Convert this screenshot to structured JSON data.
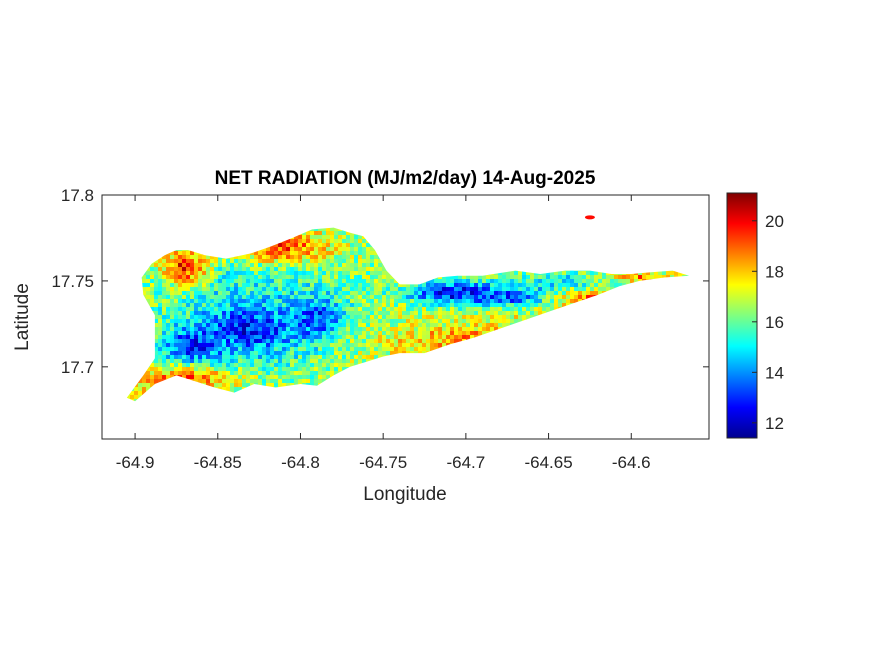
{
  "chart_data": {
    "type": "heatmap",
    "title": "NET RADIATION (MJ/m2/day) 14-Aug-2025",
    "xlabel": "Longitude",
    "ylabel": "Latitude",
    "xlim": [
      -64.92,
      -64.553
    ],
    "ylim": [
      17.658,
      17.8
    ],
    "x_ticks": [
      -64.9,
      -64.85,
      -64.8,
      -64.75,
      -64.7,
      -64.65,
      -64.6
    ],
    "x_tick_labels": [
      "-64.9",
      "-64.85",
      "-64.8",
      "-64.75",
      "-64.7",
      "-64.65",
      "-64.6"
    ],
    "y_ticks": [
      17.7,
      17.75,
      17.8
    ],
    "y_tick_labels": [
      "17.7",
      "17.75",
      "17.8"
    ],
    "grid": false,
    "colorbar": {
      "colormap": "jet",
      "clim": [
        11.4,
        21.1
      ],
      "ticks": [
        12,
        14,
        16,
        18,
        20
      ],
      "tick_labels": [
        "12",
        "14",
        "16",
        "18",
        "20"
      ]
    },
    "outline": [
      [
        -64.9,
        17.68
      ],
      [
        -64.888,
        17.69
      ],
      [
        -64.875,
        17.695
      ],
      [
        -64.865,
        17.692
      ],
      [
        -64.852,
        17.688
      ],
      [
        -64.84,
        17.685
      ],
      [
        -64.828,
        17.69
      ],
      [
        -64.815,
        17.688
      ],
      [
        -64.8,
        17.69
      ],
      [
        -64.79,
        17.689
      ],
      [
        -64.78,
        17.695
      ],
      [
        -64.77,
        17.7
      ],
      [
        -64.76,
        17.703
      ],
      [
        -64.75,
        17.706
      ],
      [
        -64.74,
        17.708
      ],
      [
        -64.725,
        17.708
      ],
      [
        -64.71,
        17.713
      ],
      [
        -64.695,
        17.717
      ],
      [
        -64.68,
        17.722
      ],
      [
        -64.665,
        17.727
      ],
      [
        -64.65,
        17.732
      ],
      [
        -64.635,
        17.737
      ],
      [
        -64.62,
        17.742
      ],
      [
        -64.607,
        17.747
      ],
      [
        -64.595,
        17.75
      ],
      [
        -64.58,
        17.752
      ],
      [
        -64.565,
        17.753
      ],
      [
        -64.575,
        17.756
      ],
      [
        -64.588,
        17.755
      ],
      [
        -64.6,
        17.754
      ],
      [
        -64.612,
        17.754
      ],
      [
        -64.625,
        17.756
      ],
      [
        -64.64,
        17.756
      ],
      [
        -64.655,
        17.754
      ],
      [
        -64.67,
        17.756
      ],
      [
        -64.69,
        17.753
      ],
      [
        -64.705,
        17.753
      ],
      [
        -64.717,
        17.752
      ],
      [
        -64.728,
        17.748
      ],
      [
        -64.74,
        17.748
      ],
      [
        -64.748,
        17.756
      ],
      [
        -64.755,
        17.768
      ],
      [
        -64.762,
        17.776
      ],
      [
        -64.77,
        17.778
      ],
      [
        -64.78,
        17.781
      ],
      [
        -64.793,
        17.78
      ],
      [
        -64.805,
        17.775
      ],
      [
        -64.818,
        17.77
      ],
      [
        -64.83,
        17.766
      ],
      [
        -64.845,
        17.763
      ],
      [
        -64.858,
        17.765
      ],
      [
        -64.868,
        17.768
      ],
      [
        -64.875,
        17.768
      ],
      [
        -64.882,
        17.765
      ],
      [
        -64.89,
        17.76
      ],
      [
        -64.896,
        17.752
      ],
      [
        -64.895,
        17.742
      ],
      [
        -64.888,
        17.73
      ],
      [
        -64.888,
        17.718
      ],
      [
        -64.888,
        17.705
      ],
      [
        -64.895,
        17.695
      ],
      [
        -64.905,
        17.682
      ]
    ],
    "islet": [
      -64.625,
      17.787
    ],
    "value_regions": [
      {
        "value": 15.0,
        "center": [
          -64.83,
          17.73
        ],
        "radius": [
          0.07,
          0.05
        ]
      },
      {
        "value": 12.8,
        "center": [
          -64.865,
          17.713
        ],
        "radius": [
          0.018,
          0.01
        ]
      },
      {
        "value": 12.8,
        "center": [
          -64.83,
          17.722
        ],
        "radius": [
          0.025,
          0.012
        ]
      },
      {
        "value": 13.2,
        "center": [
          -64.79,
          17.728
        ],
        "radius": [
          0.015,
          0.012
        ]
      },
      {
        "value": 12.4,
        "center": [
          -64.705,
          17.743
        ],
        "radius": [
          0.03,
          0.007
        ]
      },
      {
        "value": 13.3,
        "center": [
          -64.675,
          17.741
        ],
        "radius": [
          0.025,
          0.006
        ]
      },
      {
        "value": 14.6,
        "center": [
          -64.64,
          17.747
        ],
        "radius": [
          0.035,
          0.008
        ]
      },
      {
        "value": 19.6,
        "center": [
          -64.87,
          17.758
        ],
        "radius": [
          0.014,
          0.01
        ]
      },
      {
        "value": 19.2,
        "center": [
          -64.81,
          17.77
        ],
        "radius": [
          0.03,
          0.01
        ]
      },
      {
        "value": 19.0,
        "center": [
          -64.87,
          17.693
        ],
        "radius": [
          0.03,
          0.006
        ]
      },
      {
        "value": 18.8,
        "center": [
          -64.625,
          17.74
        ],
        "radius": [
          0.02,
          0.006
        ]
      },
      {
        "value": 18.4,
        "center": [
          -64.7,
          17.716
        ],
        "radius": [
          0.04,
          0.006
        ]
      },
      {
        "value": 18.6,
        "center": [
          -64.598,
          17.752
        ],
        "radius": [
          0.015,
          0.003
        ]
      }
    ]
  }
}
